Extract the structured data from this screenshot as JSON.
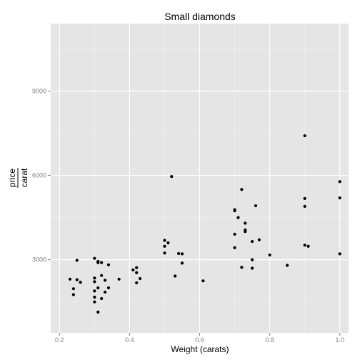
{
  "chart_data": {
    "type": "scatter",
    "title": "Small diamonds",
    "xlabel": "Weight (carats)",
    "ylabel_numerator": "price",
    "ylabel_denominator": "carat",
    "xlim": [
      0.175,
      1.025
    ],
    "ylim": [
      400,
      11400
    ],
    "x_ticks": [
      0.2,
      0.4,
      0.6,
      0.8,
      1.0
    ],
    "x_tick_labels": [
      "0.2",
      "0.4",
      "0.6",
      "0.8",
      "1.0"
    ],
    "y_ticks": [
      3000,
      6000,
      9000
    ],
    "y_tick_labels": [
      "3000",
      "6000",
      "9000"
    ],
    "grid": true,
    "point_color": "#000000",
    "panel_color": "#e5e5e5",
    "grid_color": "#ffffff",
    "points": [
      {
        "x": 0.23,
        "y": 2310
      },
      {
        "x": 0.24,
        "y": 1970
      },
      {
        "x": 0.24,
        "y": 1760
      },
      {
        "x": 0.25,
        "y": 2980
      },
      {
        "x": 0.25,
        "y": 2290
      },
      {
        "x": 0.26,
        "y": 2200
      },
      {
        "x": 0.3,
        "y": 3050
      },
      {
        "x": 0.3,
        "y": 2350
      },
      {
        "x": 0.3,
        "y": 2220
      },
      {
        "x": 0.3,
        "y": 1890
      },
      {
        "x": 0.3,
        "y": 1670
      },
      {
        "x": 0.3,
        "y": 1500
      },
      {
        "x": 0.31,
        "y": 2900
      },
      {
        "x": 0.31,
        "y": 2940
      },
      {
        "x": 0.31,
        "y": 2000
      },
      {
        "x": 0.31,
        "y": 1140
      },
      {
        "x": 0.32,
        "y": 2900
      },
      {
        "x": 0.32,
        "y": 2440
      },
      {
        "x": 0.32,
        "y": 1620
      },
      {
        "x": 0.33,
        "y": 2270
      },
      {
        "x": 0.33,
        "y": 1850
      },
      {
        "x": 0.34,
        "y": 2820
      },
      {
        "x": 0.34,
        "y": 2000
      },
      {
        "x": 0.37,
        "y": 2310
      },
      {
        "x": 0.41,
        "y": 2640
      },
      {
        "x": 0.42,
        "y": 2720
      },
      {
        "x": 0.42,
        "y": 2540
      },
      {
        "x": 0.42,
        "y": 2180
      },
      {
        "x": 0.43,
        "y": 2330
      },
      {
        "x": 0.5,
        "y": 3690
      },
      {
        "x": 0.5,
        "y": 3480
      },
      {
        "x": 0.5,
        "y": 3240
      },
      {
        "x": 0.51,
        "y": 3600
      },
      {
        "x": 0.52,
        "y": 5960
      },
      {
        "x": 0.53,
        "y": 2420
      },
      {
        "x": 0.54,
        "y": 3220
      },
      {
        "x": 0.55,
        "y": 3210
      },
      {
        "x": 0.55,
        "y": 2880
      },
      {
        "x": 0.61,
        "y": 2250
      },
      {
        "x": 0.7,
        "y": 4780
      },
      {
        "x": 0.7,
        "y": 4740
      },
      {
        "x": 0.7,
        "y": 3910
      },
      {
        "x": 0.7,
        "y": 3430
      },
      {
        "x": 0.71,
        "y": 4500
      },
      {
        "x": 0.72,
        "y": 5500
      },
      {
        "x": 0.72,
        "y": 2730
      },
      {
        "x": 0.73,
        "y": 4300
      },
      {
        "x": 0.73,
        "y": 4060
      },
      {
        "x": 0.73,
        "y": 4000
      },
      {
        "x": 0.75,
        "y": 3650
      },
      {
        "x": 0.75,
        "y": 3000
      },
      {
        "x": 0.75,
        "y": 2700
      },
      {
        "x": 0.76,
        "y": 4920
      },
      {
        "x": 0.77,
        "y": 3710
      },
      {
        "x": 0.8,
        "y": 3170
      },
      {
        "x": 0.85,
        "y": 2800
      },
      {
        "x": 0.9,
        "y": 7410
      },
      {
        "x": 0.9,
        "y": 5180
      },
      {
        "x": 0.9,
        "y": 4900
      },
      {
        "x": 0.9,
        "y": 3520
      },
      {
        "x": 0.91,
        "y": 3480
      },
      {
        "x": 1.0,
        "y": 5780
      },
      {
        "x": 1.0,
        "y": 5200
      },
      {
        "x": 1.0,
        "y": 3210
      }
    ]
  }
}
